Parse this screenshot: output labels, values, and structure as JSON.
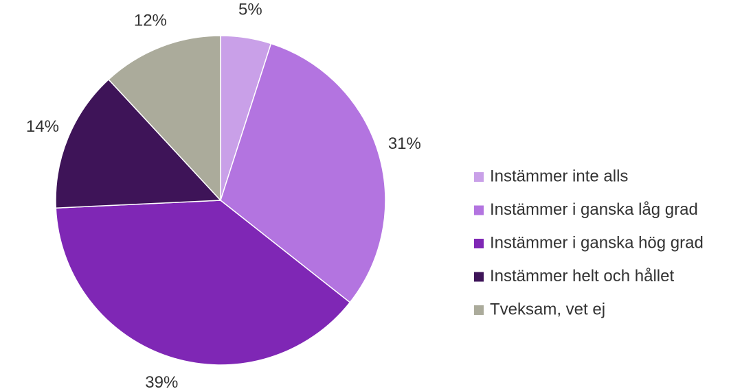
{
  "chart_data": {
    "type": "pie",
    "categories": [
      "Instämmer inte alls",
      "Instämmer i ganska låg grad",
      "Instämmer i ganska hög grad",
      "Instämmer helt och hållet",
      "Tveksam, vet ej"
    ],
    "values": [
      5,
      31,
      39,
      14,
      12
    ],
    "value_labels": [
      "5%",
      "31%",
      "39%",
      "14%",
      "12%"
    ],
    "colors": [
      "#c9a0e8",
      "#b374e0",
      "#7f27b5",
      "#3e1458",
      "#abab9b"
    ],
    "legend": "right"
  }
}
